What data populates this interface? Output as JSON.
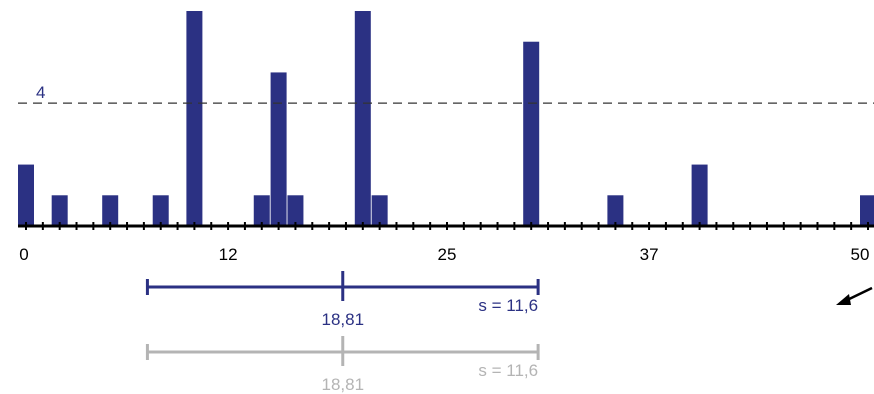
{
  "chart_data": {
    "type": "bar",
    "x_range": [
      0,
      50
    ],
    "x_tick_labels": [
      "0",
      "12",
      "25",
      "37",
      "50"
    ],
    "y_max": 7,
    "reference_line": {
      "value": 4,
      "label": "4"
    },
    "points": [
      {
        "x": 0,
        "y": 2
      },
      {
        "x": 2,
        "y": 1
      },
      {
        "x": 5,
        "y": 1
      },
      {
        "x": 8,
        "y": 1
      },
      {
        "x": 10,
        "y": 7
      },
      {
        "x": 14,
        "y": 1
      },
      {
        "x": 15,
        "y": 5
      },
      {
        "x": 16,
        "y": 1
      },
      {
        "x": 20,
        "y": 7
      },
      {
        "x": 21,
        "y": 1
      },
      {
        "x": 30,
        "y": 6
      },
      {
        "x": 35,
        "y": 1
      },
      {
        "x": 40,
        "y": 2
      },
      {
        "x": 50,
        "y": 1
      }
    ],
    "summaries": [
      {
        "mean": 18.81,
        "sd": 11.6,
        "mean_label": "18,81",
        "sd_label": "s = 11,6",
        "color": "#2b3183"
      },
      {
        "mean": 18.81,
        "sd": 11.6,
        "mean_label": "18,81",
        "sd_label": "s = 11,6",
        "color": "#b4b4b4"
      }
    ],
    "colors": {
      "bars": "#2b3183",
      "axis": "#000000",
      "reference_line": "#333333"
    }
  },
  "arrow_icon": "arrow-down-left-icon"
}
